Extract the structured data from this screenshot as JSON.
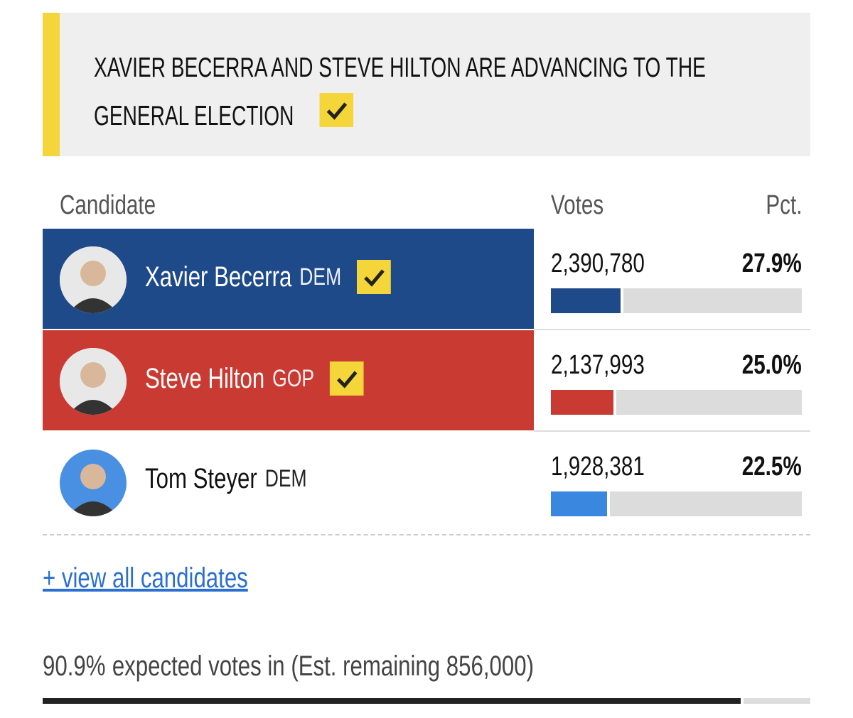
{
  "banner": {
    "title": "XAVIER BECERRA AND STEVE HILTON ARE ADVANCING TO THE GENERAL ELECTION",
    "checked": true
  },
  "table": {
    "headers": [
      "Candidate",
      "Votes",
      "Pct."
    ],
    "rows": [
      {
        "name": "Xavier Becerra",
        "party": "DEM",
        "votes": "2,390,780",
        "pct": 27.9,
        "pct_label": "27.9%",
        "color": "#1f4a8a",
        "winner": true
      },
      {
        "name": "Steve Hilton",
        "party": "GOP",
        "votes": "2,137,993",
        "pct": 25.0,
        "pct_label": "25.0%",
        "color": "#c93a32",
        "winner": true
      },
      {
        "name": "Tom Steyer",
        "party": "DEM",
        "votes": "1,928,381",
        "pct": 22.5,
        "pct_label": "22.5%",
        "color": "#3a87e0",
        "winner": false
      }
    ]
  },
  "link": "+ view all candidates",
  "footer": {
    "expected_pct": 90.9,
    "expected_label": "90.9%",
    "text": "expected votes in (Est. remaining 856,000)"
  }
}
